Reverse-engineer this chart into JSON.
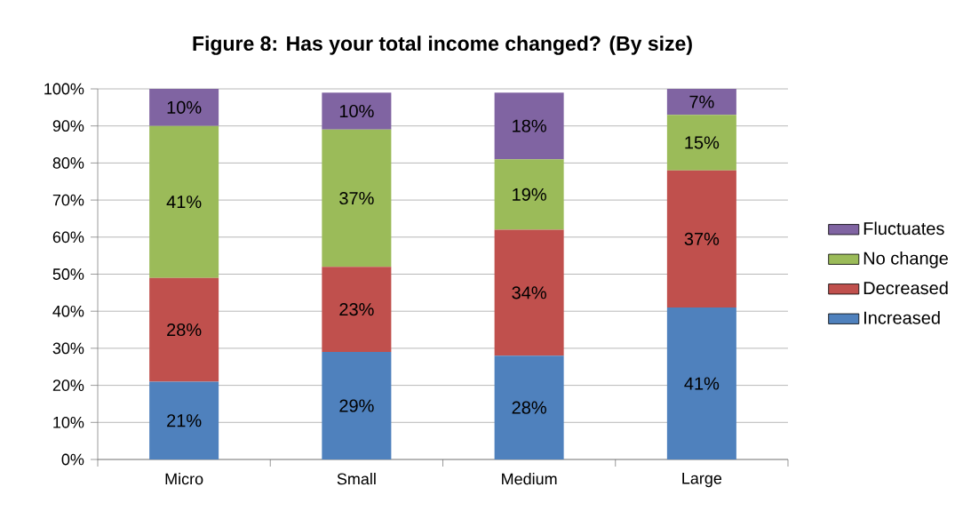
{
  "chart_data": {
    "type": "bar",
    "stacked": true,
    "title": "Figure 8: Has your total income changed? (By size)",
    "categories": [
      "Micro",
      "Small",
      "Medium",
      "Large"
    ],
    "series": [
      {
        "name": "Increased",
        "color": "#4f81bd",
        "values": [
          21,
          29,
          28,
          41
        ],
        "value_labels": [
          "21%",
          "29%",
          "28%",
          "41%"
        ]
      },
      {
        "name": "Decreased",
        "color": "#c0504d",
        "values": [
          28,
          23,
          34,
          37
        ],
        "value_labels": [
          "28%",
          "23%",
          "34%",
          "37%"
        ]
      },
      {
        "name": "No change",
        "color": "#9bbb59",
        "values": [
          41,
          37,
          19,
          15
        ],
        "value_labels": [
          "41%",
          "37%",
          "19%",
          "15%"
        ]
      },
      {
        "name": "Fluctuates",
        "color": "#8064a2",
        "values": [
          10,
          10,
          18,
          7
        ],
        "value_labels": [
          "10%",
          "10%",
          "18%",
          "7%"
        ]
      }
    ],
    "ylim": [
      0,
      100
    ],
    "yticks": [
      {
        "value": 0,
        "label": "0%"
      },
      {
        "value": 10,
        "label": "10%"
      },
      {
        "value": 20,
        "label": "20%"
      },
      {
        "value": 30,
        "label": "30%"
      },
      {
        "value": 40,
        "label": "40%"
      },
      {
        "value": 50,
        "label": "50%"
      },
      {
        "value": 60,
        "label": "60%"
      },
      {
        "value": 70,
        "label": "70%"
      },
      {
        "value": 80,
        "label": "80%"
      },
      {
        "value": 90,
        "label": "90%"
      },
      {
        "value": 100,
        "label": "100%"
      }
    ],
    "grid": "y",
    "legend": "right"
  }
}
